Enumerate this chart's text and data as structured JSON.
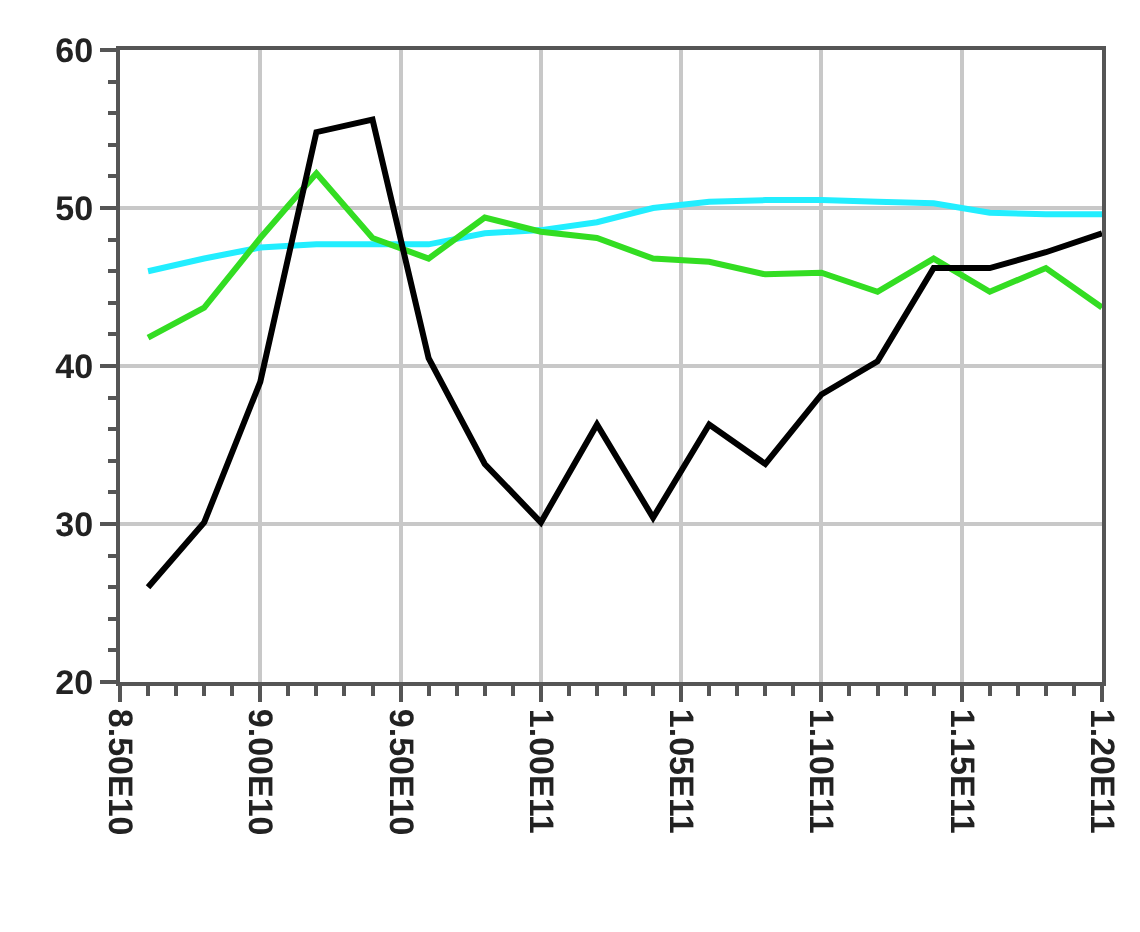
{
  "chart_data": {
    "type": "line",
    "x": [
      86000000000,
      88000000000,
      90000000000,
      92000000000,
      94000000000,
      96000000000,
      98000000000,
      100000000000,
      102000000000,
      104000000000,
      106000000000,
      108000000000,
      110000000000,
      112000000000,
      114000000000,
      116000000000,
      118000000000,
      120000000000
    ],
    "series": [
      {
        "color": "#22eeff",
        "values": [
          46.0,
          46.8,
          47.5,
          47.7,
          47.7,
          47.7,
          48.4,
          48.6,
          49.1,
          50.0,
          50.4,
          50.5,
          50.5,
          50.4,
          50.3,
          49.7,
          49.6,
          49.6
        ]
      },
      {
        "color": "#33dd22",
        "values": [
          41.8,
          43.7,
          48.1,
          52.2,
          48.1,
          46.8,
          49.4,
          48.5,
          48.1,
          46.8,
          46.6,
          45.8,
          45.9,
          44.7,
          46.8,
          44.7,
          46.2,
          43.7
        ]
      },
      {
        "color": "#000000",
        "values": [
          26.0,
          30.1,
          39.0,
          54.8,
          55.6,
          40.5,
          33.8,
          30.1,
          36.3,
          30.4,
          36.3,
          33.8,
          38.2,
          40.3,
          46.2,
          46.2,
          47.2,
          48.4
        ]
      }
    ],
    "xlim": [
      85000000000,
      120000000000
    ],
    "xticks": [
      {
        "value": 85000000000,
        "label": "8.50E10"
      },
      {
        "value": 90000000000,
        "label": "9.00E10"
      },
      {
        "value": 95000000000,
        "label": "9.50E10"
      },
      {
        "value": 100000000000,
        "label": "1.00E11"
      },
      {
        "value": 105000000000,
        "label": "1.05E11"
      },
      {
        "value": 110000000000,
        "label": "1.10E11"
      },
      {
        "value": 115000000000,
        "label": "1.15E11"
      },
      {
        "value": 120000000000,
        "label": "1.20E11"
      }
    ],
    "ylim": [
      20,
      60
    ],
    "yticks": [
      20,
      30,
      40,
      50,
      60
    ],
    "grid": true,
    "marker": "none",
    "line_style": "solid"
  }
}
